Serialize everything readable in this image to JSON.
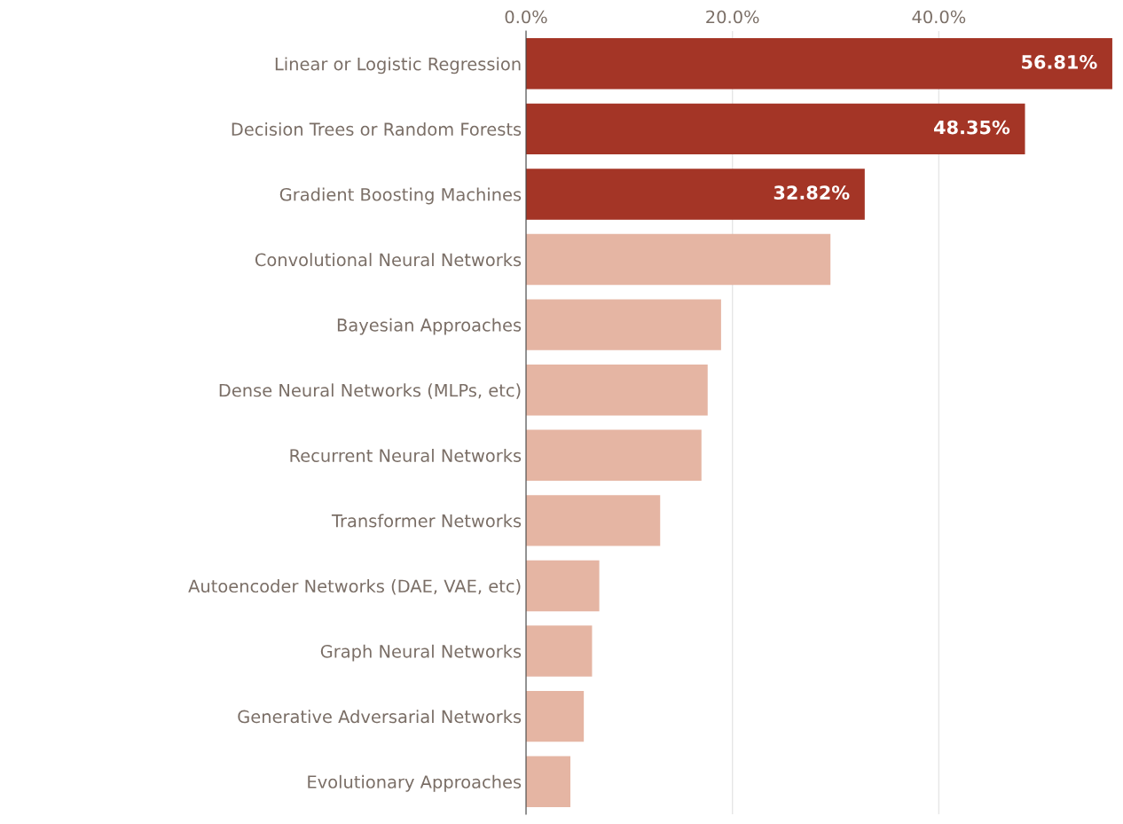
{
  "chart_data": {
    "type": "bar",
    "orientation": "horizontal",
    "categories": [
      "Linear or Logistic Regression",
      "Decision Trees or Random Forests",
      "Gradient Boosting Machines",
      "Convolutional Neural Networks",
      "Bayesian Approaches",
      "Dense Neural Networks (MLPs, etc)",
      "Recurrent Neural Networks",
      "Transformer Networks",
      "Autoencoder Networks (DAE, VAE, etc)",
      "Graph Neural Networks",
      "Generative Adversarial Networks",
      "Evolutionary Approaches"
    ],
    "values": [
      56.81,
      48.35,
      32.82,
      29.5,
      18.9,
      17.6,
      17.0,
      13.0,
      7.1,
      6.4,
      5.6,
      4.3
    ],
    "colors": [
      "#a43526",
      "#a43526",
      "#a43526",
      "#e5b5a3",
      "#e5b5a3",
      "#e5b5a3",
      "#e5b5a3",
      "#e5b5a3",
      "#e5b5a3",
      "#e5b5a3",
      "#e5b5a3",
      "#e5b5a3"
    ],
    "value_labels": [
      "56.81%",
      "48.35%",
      "32.82%",
      null,
      null,
      null,
      null,
      null,
      null,
      null,
      null,
      null
    ],
    "xlim": [
      0,
      56.9
    ],
    "xticks": [
      {
        "value": 0,
        "label": "0.0%"
      },
      {
        "value": 20,
        "label": "20.0%"
      },
      {
        "value": 40,
        "label": "40.0%"
      }
    ],
    "grid": "x",
    "legend": false
  }
}
